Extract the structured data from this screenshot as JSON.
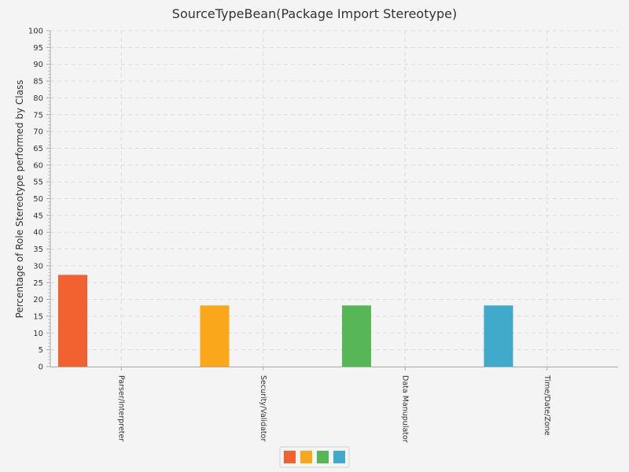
{
  "chart_data": {
    "type": "bar",
    "title": "SourceTypeBean(Package Import Stereotype)",
    "ylabel": "Percentage of Role Stereotype performed by Class",
    "xlabel": "",
    "ylim": [
      0,
      100
    ],
    "ytick_step": 5,
    "grid": true,
    "legend": "bottom-center",
    "categories": [
      "Parser/Interpreter",
      "Security/Validator",
      "Data Manupulator",
      "Time/Date/Zone"
    ],
    "values": [
      27.3,
      18.2,
      18.2,
      18.2
    ],
    "colors": [
      "#f26130",
      "#fba71b",
      "#57b757",
      "#41a9c9"
    ]
  }
}
